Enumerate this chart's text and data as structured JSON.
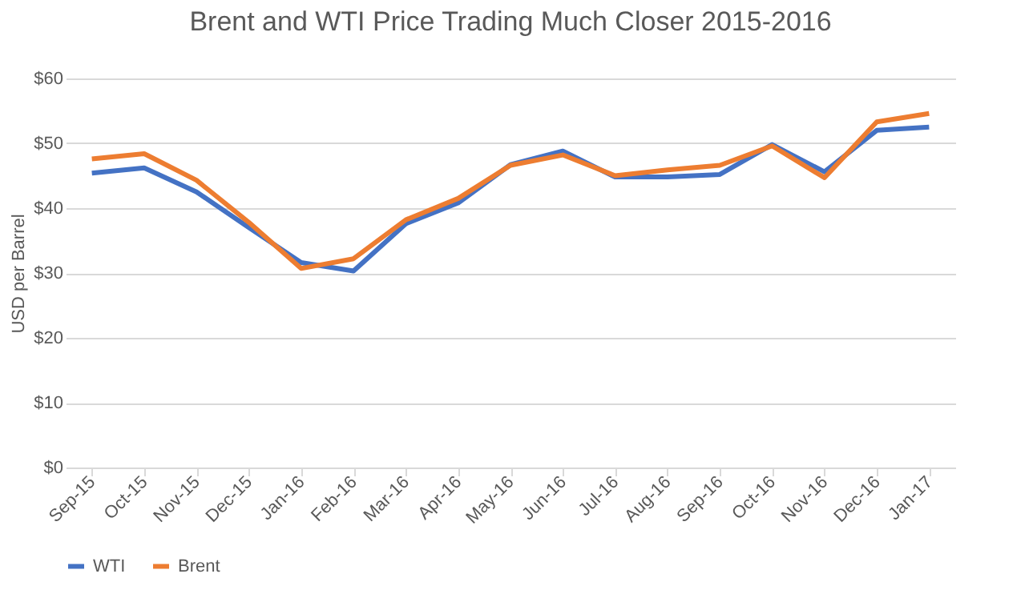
{
  "chart_data": {
    "type": "line",
    "title": "Brent and WTI Price Trading Much Closer 2015-2016",
    "ylabel": "USD per Barrel",
    "categories": [
      "Sep-15",
      "Oct-15",
      "Nov-15",
      "Dec-15",
      "Jan-16",
      "Feb-16",
      "Mar-16",
      "Apr-16",
      "May-16",
      "Jun-16",
      "Jul-16",
      "Aug-16",
      "Sep-16",
      "Oct-16",
      "Nov-16",
      "Dec-16",
      "Jan-17"
    ],
    "series": [
      {
        "name": "WTI",
        "color": "#4472c4",
        "values": [
          45.4,
          46.2,
          42.5,
          37,
          31.6,
          30.3,
          37.6,
          40.8,
          46.7,
          48.8,
          44.8,
          44.8,
          45.2,
          49.8,
          45.6,
          52,
          52.5
        ]
      },
      {
        "name": "Brent",
        "color": "#ed7d31",
        "values": [
          47.6,
          48.4,
          44.3,
          37.8,
          30.7,
          32.2,
          38.2,
          41.5,
          46.6,
          48.2,
          45,
          45.9,
          46.6,
          49.6,
          44.7,
          53.3,
          54.6
        ]
      }
    ],
    "ylim": [
      0,
      60
    ],
    "yticks": [
      {
        "value": 0,
        "label": "$0"
      },
      {
        "value": 10,
        "label": "$10"
      },
      {
        "value": 20,
        "label": "$20"
      },
      {
        "value": 30,
        "label": "$30"
      },
      {
        "value": 40,
        "label": "$40"
      },
      {
        "value": 50,
        "label": "$50"
      },
      {
        "value": 60,
        "label": "$60"
      }
    ],
    "grid": "y",
    "legend": "bottom"
  }
}
